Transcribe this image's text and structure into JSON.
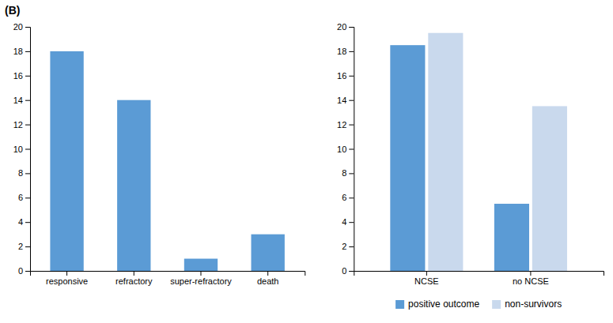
{
  "chart_data": [
    {
      "type": "bar",
      "title": "(B)",
      "categories": [
        "responsive",
        "refractory",
        "super-refractory",
        "death"
      ],
      "values": [
        18,
        14,
        1,
        3
      ],
      "color": "#5B9BD5",
      "ylim": [
        0,
        20
      ],
      "yticks": [
        0,
        2,
        4,
        6,
        8,
        10,
        12,
        14,
        16,
        18,
        20
      ],
      "grid": false
    },
    {
      "type": "bar",
      "categories": [
        "NCSE",
        "no NCSE"
      ],
      "series": [
        {
          "name": "positive outcome",
          "color": "#5B9BD5",
          "values": [
            18.5,
            5.5
          ]
        },
        {
          "name": "non-survivors",
          "color": "#C9D9ED",
          "values": [
            19.5,
            13.5
          ]
        }
      ],
      "ylim": [
        0,
        20
      ],
      "yticks": [
        0,
        2,
        4,
        6,
        8,
        10,
        12,
        14,
        16,
        18,
        20
      ],
      "grid": false,
      "legend": "bottom"
    }
  ]
}
